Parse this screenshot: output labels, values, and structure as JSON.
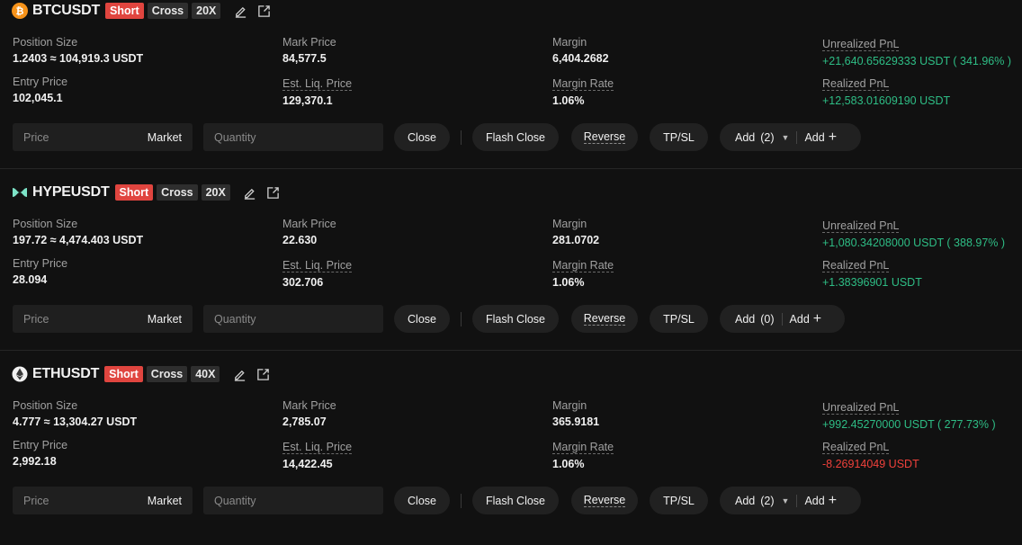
{
  "labels": {
    "position_size": "Position Size",
    "mark_price": "Mark Price",
    "margin": "Margin",
    "unrealized_pnl": "Unrealized PnL",
    "entry_price": "Entry Price",
    "est_liq_price": "Est. Liq. Price",
    "margin_rate": "Margin Rate",
    "realized_pnl": "Realized PnL",
    "price_placeholder": "Price",
    "market": "Market",
    "quantity_placeholder": "Quantity",
    "close": "Close",
    "flash_close": "Flash Close",
    "reverse": "Reverse",
    "tpsl": "TP/SL",
    "add": "Add"
  },
  "colors": {
    "profit": "#2ebd85",
    "loss": "#f0413b",
    "short_tag": "#e0453f"
  },
  "positions": [
    {
      "symbol": "BTCUSDT",
      "coin_icon": "bitcoin-icon",
      "side": "Short",
      "mode": "Cross",
      "leverage": "20X",
      "position_size": "1.2403 ≈ 104,919.3 USDT",
      "mark_price": "84,577.5",
      "margin": "6,404.2682",
      "unrealized_pnl": "+21,640.65629333 USDT ( 341.96% )",
      "entry_price": "102,045.1",
      "est_liq_price": "129,370.1",
      "margin_rate": "1.06%",
      "realized_pnl": "+12,583.01609190 USDT",
      "add_count": "(2)"
    },
    {
      "symbol": "HYPEUSDT",
      "coin_icon": "hyperliquid-icon",
      "side": "Short",
      "mode": "Cross",
      "leverage": "20X",
      "position_size": "197.72 ≈ 4,474.403 USDT",
      "mark_price": "22.630",
      "margin": "281.0702",
      "unrealized_pnl": "+1,080.34208000 USDT ( 388.97% )",
      "entry_price": "28.094",
      "est_liq_price": "302.706",
      "margin_rate": "1.06%",
      "realized_pnl": "+1.38396901 USDT",
      "add_count": "(0)"
    },
    {
      "symbol": "ETHUSDT",
      "coin_icon": "ethereum-icon",
      "side": "Short",
      "mode": "Cross",
      "leverage": "40X",
      "position_size": "4.777 ≈ 13,304.27 USDT",
      "mark_price": "2,785.07",
      "margin": "365.9181",
      "unrealized_pnl": "+992.45270000 USDT ( 277.73% )",
      "entry_price": "2,992.18",
      "est_liq_price": "14,422.45",
      "margin_rate": "1.06%",
      "realized_pnl": "-8.26914049 USDT",
      "add_count": "(2)"
    }
  ]
}
